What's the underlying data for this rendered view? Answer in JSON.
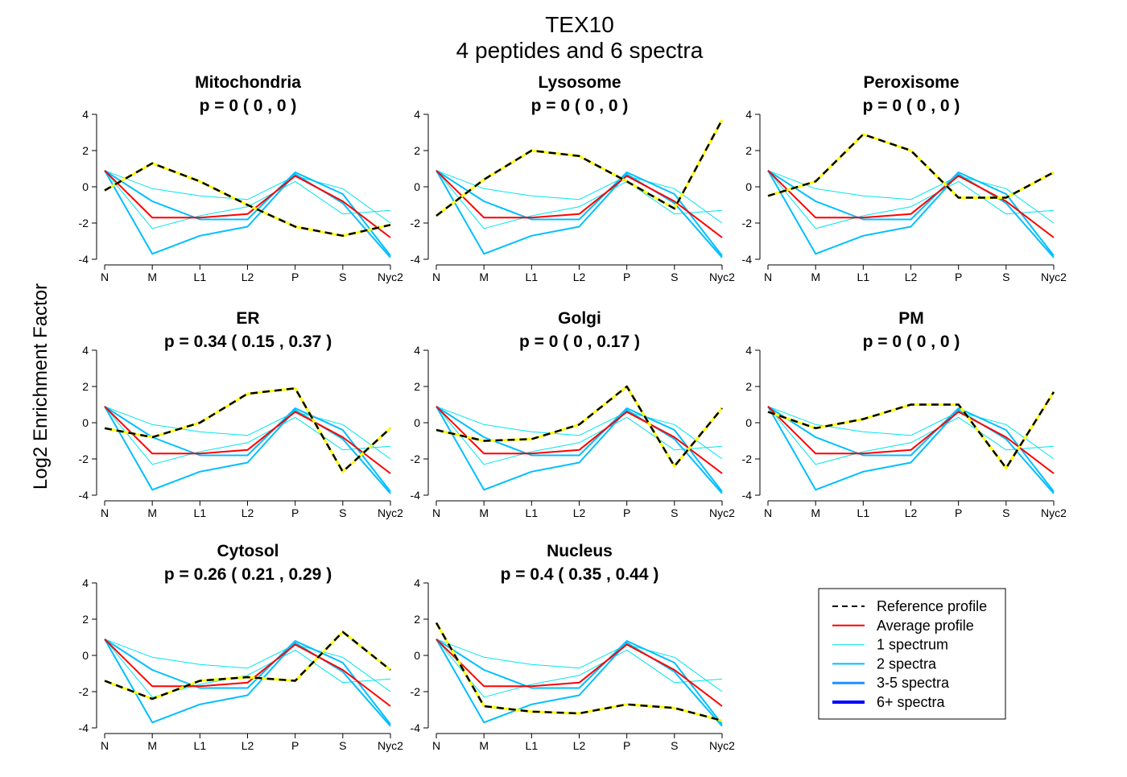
{
  "figure": {
    "title": "TEX10",
    "subtitle": "4  peptides and  6  spectra",
    "ylabel": "Log2 Enrichment Factor"
  },
  "colors": {
    "reference_dash": "#000000",
    "reference_under": "#ffff00",
    "average": "#ff0000",
    "one_spectrum": "#00e5ee",
    "two_spectra": "#00bfff",
    "three_five_spectra": "#1e90ff",
    "six_plus_spectra": "#0000ff"
  },
  "legend": {
    "entries": [
      {
        "label": "Reference profile",
        "style": "reference"
      },
      {
        "label": "Average profile",
        "style": "average"
      },
      {
        "label": "1 spectrum",
        "style": "one_spectrum"
      },
      {
        "label": "2 spectra",
        "style": "two_spectra"
      },
      {
        "label": "3-5 spectra",
        "style": "three_five_spectra"
      },
      {
        "label": "6+ spectra",
        "style": "six_plus_spectra"
      }
    ]
  },
  "chart_data": {
    "type": "line",
    "x": [
      "N",
      "M",
      "L1",
      "L2",
      "P",
      "S",
      "Nyc2"
    ],
    "ylim": [
      -4,
      4
    ],
    "yticks": [
      "4",
      "2",
      "0",
      "-2",
      "-4"
    ],
    "grid": false,
    "legend_position": "bottom-right",
    "peptide_profiles": [
      {
        "weight": "one_spectrum",
        "values": [
          0.9,
          -2.3,
          -1.6,
          -1.1,
          0.3,
          -1.5,
          -1.3
        ]
      },
      {
        "weight": "one_spectrum",
        "values": [
          0.9,
          -0.1,
          -0.5,
          -0.7,
          0.6,
          -0.1,
          -2.0
        ]
      },
      {
        "weight": "two_spectra",
        "values": [
          0.9,
          -3.7,
          -2.7,
          -2.2,
          0.7,
          -0.9,
          -3.9
        ]
      },
      {
        "weight": "two_spectra",
        "values": [
          0.9,
          -0.8,
          -1.8,
          -1.8,
          0.8,
          -0.4,
          -3.8
        ]
      }
    ],
    "average_profile": [
      0.9,
      -1.7,
      -1.7,
      -1.5,
      0.6,
      -0.8,
      -2.8
    ],
    "panels": [
      {
        "name": "Mitochondria",
        "p_label": "p =  0  ( 0 ,  0 )",
        "reference": [
          -0.2,
          1.3,
          0.3,
          -1.0,
          -2.2,
          -2.7,
          -2.1
        ]
      },
      {
        "name": "Lysosome",
        "p_label": "p =  0  ( 0 ,  0 )",
        "reference": [
          -1.6,
          0.4,
          2.0,
          1.7,
          0.3,
          -1.2,
          3.7
        ]
      },
      {
        "name": "Peroxisome",
        "p_label": "p =  0  ( 0 ,  0 )",
        "reference": [
          -0.5,
          0.3,
          2.9,
          2.0,
          -0.6,
          -0.6,
          0.8
        ]
      },
      {
        "name": "ER",
        "p_label": "p =  0.34  ( 0.15 ,  0.37 )",
        "reference": [
          -0.3,
          -0.8,
          0.0,
          1.6,
          1.9,
          -2.7,
          -0.3
        ]
      },
      {
        "name": "Golgi",
        "p_label": "p =  0  ( 0 ,  0.17 )",
        "reference": [
          -0.4,
          -1.0,
          -0.9,
          -0.1,
          2.0,
          -2.4,
          0.8
        ]
      },
      {
        "name": "PM",
        "p_label": "p =  0  ( 0 ,  0 )",
        "reference": [
          0.6,
          -0.3,
          0.2,
          1.0,
          1.0,
          -2.5,
          1.7
        ]
      },
      {
        "name": "Cytosol",
        "p_label": "p =  0.26  ( 0.21 ,  0.29 )",
        "reference": [
          -1.4,
          -2.4,
          -1.4,
          -1.2,
          -1.4,
          1.3,
          -0.8
        ]
      },
      {
        "name": "Nucleus",
        "p_label": "p =  0.4  ( 0.35 ,  0.44 )",
        "reference": [
          1.8,
          -2.8,
          -3.1,
          -3.2,
          -2.7,
          -2.9,
          -3.6
        ]
      }
    ]
  }
}
